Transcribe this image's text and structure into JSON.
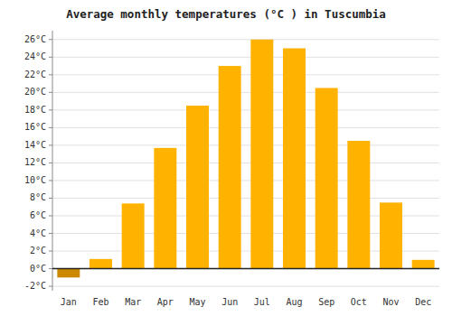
{
  "chart_data": {
    "type": "bar",
    "title": "Average monthly temperatures (°C ) in Tuscumbia",
    "categories": [
      "Jan",
      "Feb",
      "Mar",
      "Apr",
      "May",
      "Jun",
      "Jul",
      "Aug",
      "Sep",
      "Oct",
      "Nov",
      "Dec"
    ],
    "values": [
      -1.0,
      1.1,
      7.4,
      13.7,
      18.5,
      23.0,
      26.0,
      25.0,
      20.5,
      14.5,
      7.5,
      1.0
    ],
    "colors": [
      "#CC8800",
      "#FFB300",
      "#FFB300",
      "#FFB300",
      "#FFB300",
      "#FFB300",
      "#FFB300",
      "#FFB300",
      "#FFB300",
      "#FFB300",
      "#FFB300",
      "#FFB300"
    ],
    "ylim": [
      -2.5,
      27
    ],
    "yticks": [
      {
        "value": -2,
        "label": "-2°C"
      },
      {
        "value": 0,
        "label": "0°C"
      },
      {
        "value": 2,
        "label": "2°C"
      },
      {
        "value": 4,
        "label": "4°C"
      },
      {
        "value": 6,
        "label": "6°C"
      },
      {
        "value": 8,
        "label": "8°C"
      },
      {
        "value": 10,
        "label": "10°C"
      },
      {
        "value": 12,
        "label": "12°C"
      },
      {
        "value": 14,
        "label": "14°C"
      },
      {
        "value": 16,
        "label": "16°C"
      },
      {
        "value": 18,
        "label": "18°C"
      },
      {
        "value": 20,
        "label": "20°C"
      },
      {
        "value": 22,
        "label": "22°C"
      },
      {
        "value": 24,
        "label": "24°C"
      },
      {
        "value": 26,
        "label": "26°C"
      }
    ],
    "grid": true
  }
}
